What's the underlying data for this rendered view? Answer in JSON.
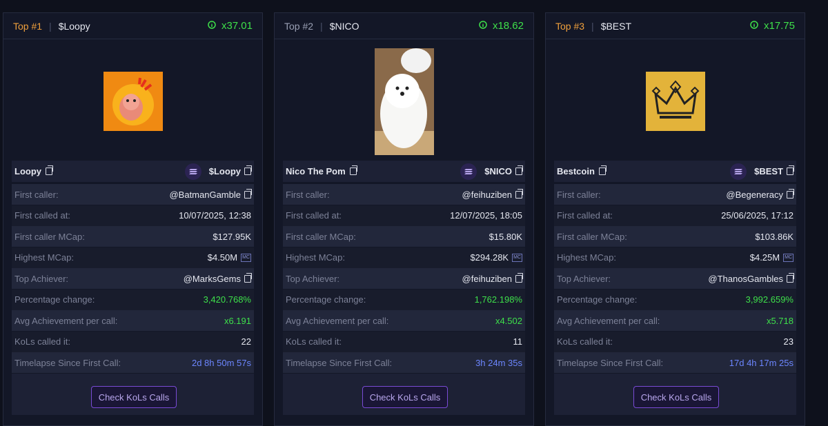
{
  "cards": [
    {
      "rank": "Top #1",
      "rank_color": "#f0a03c",
      "ticker": "$Loopy",
      "multiplier": "x37.01",
      "name": "Loopy",
      "symbol": "$Loopy",
      "rows": [
        {
          "label": "First caller:",
          "value": "@BatmanGamble",
          "copy": true
        },
        {
          "label": "First called at:",
          "value": "10/07/2025, 12:38"
        },
        {
          "label": "First caller MCap:",
          "value": "$127.95K"
        },
        {
          "label": "Highest MCap:",
          "value": "$4.50M",
          "badge": "MC"
        },
        {
          "label": "Top Achiever:",
          "value": "@MarksGems",
          "copy": true
        },
        {
          "label": "Percentage change:",
          "value": "3,420.768%",
          "tone": "green"
        },
        {
          "label": "Avg Achievement per call:",
          "value": "x6.191",
          "tone": "green"
        },
        {
          "label": "KoLs called it:",
          "value": "22"
        },
        {
          "label": "Timelapse Since First Call:",
          "value": "2d 8h 50m 57s",
          "tone": "blue"
        }
      ],
      "button": "Check KoLs Calls"
    },
    {
      "rank": "Top #2",
      "rank_color": "#9aa0b4",
      "ticker": "$NICO",
      "multiplier": "x18.62",
      "name": "Nico The Pom",
      "symbol": "$NICO",
      "rows": [
        {
          "label": "First caller:",
          "value": "@feihuziben",
          "copy": true
        },
        {
          "label": "First called at:",
          "value": "12/07/2025, 18:05"
        },
        {
          "label": "First caller MCap:",
          "value": "$15.80K"
        },
        {
          "label": "Highest MCap:",
          "value": "$294.28K",
          "badge": "MC"
        },
        {
          "label": "Top Achiever:",
          "value": "@feihuziben",
          "copy": true
        },
        {
          "label": "Percentage change:",
          "value": "1,762.198%",
          "tone": "green"
        },
        {
          "label": "Avg Achievement per call:",
          "value": "x4.502",
          "tone": "green"
        },
        {
          "label": "KoLs called it:",
          "value": "11"
        },
        {
          "label": "Timelapse Since First Call:",
          "value": "3h 24m 35s",
          "tone": "blue"
        }
      ],
      "button": "Check KoLs Calls"
    },
    {
      "rank": "Top #3",
      "rank_color": "#f0a03c",
      "ticker": "$BEST",
      "multiplier": "x17.75",
      "name": "Bestcoin",
      "symbol": "$BEST",
      "rows": [
        {
          "label": "First caller:",
          "value": "@Begeneracy",
          "copy": true
        },
        {
          "label": "First called at:",
          "value": "25/06/2025, 17:12"
        },
        {
          "label": "First caller MCap:",
          "value": "$103.86K"
        },
        {
          "label": "Highest MCap:",
          "value": "$4.25M",
          "badge": "MC"
        },
        {
          "label": "Top Achiever:",
          "value": "@ThanosGambles",
          "copy": true
        },
        {
          "label": "Percentage change:",
          "value": "3,992.659%",
          "tone": "green"
        },
        {
          "label": "Avg Achievement per call:",
          "value": "x5.718",
          "tone": "green"
        },
        {
          "label": "KoLs called it:",
          "value": "23"
        },
        {
          "label": "Timelapse Since First Call:",
          "value": "17d 4h 17m 25s",
          "tone": "blue"
        }
      ],
      "button": "Check KoLs Calls"
    }
  ]
}
